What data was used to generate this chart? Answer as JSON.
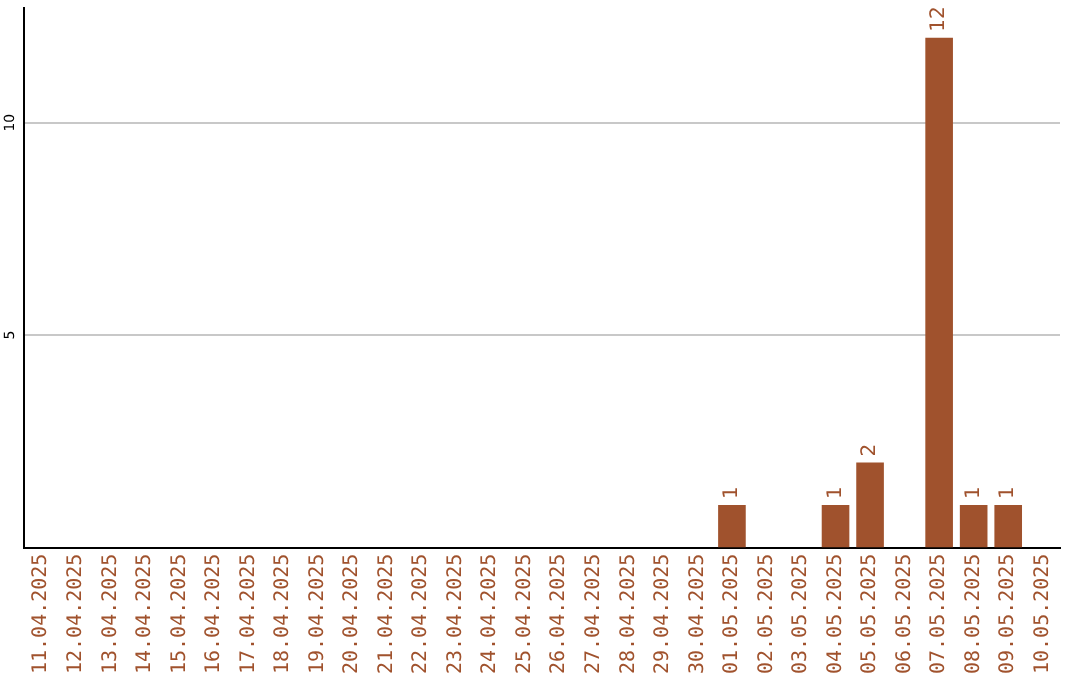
{
  "chart_data": {
    "type": "bar",
    "categories": [
      "11.04.2025",
      "12.04.2025",
      "13.04.2025",
      "14.04.2025",
      "15.04.2025",
      "16.04.2025",
      "17.04.2025",
      "18.04.2025",
      "19.04.2025",
      "20.04.2025",
      "21.04.2025",
      "22.04.2025",
      "23.04.2025",
      "24.04.2025",
      "25.04.2025",
      "26.04.2025",
      "27.04.2025",
      "28.04.2025",
      "29.04.2025",
      "30.04.2025",
      "01.05.2025",
      "02.05.2025",
      "03.05.2025",
      "04.05.2025",
      "05.05.2025",
      "06.05.2025",
      "07.05.2025",
      "08.05.2025",
      "09.05.2025",
      "10.05.2025"
    ],
    "values": [
      0,
      0,
      0,
      0,
      0,
      0,
      0,
      0,
      0,
      0,
      0,
      0,
      0,
      0,
      0,
      0,
      0,
      0,
      0,
      0,
      1,
      0,
      0,
      1,
      2,
      0,
      12,
      1,
      1,
      0
    ],
    "value_labels": [
      null,
      null,
      null,
      null,
      null,
      null,
      null,
      null,
      null,
      null,
      null,
      null,
      null,
      null,
      null,
      null,
      null,
      null,
      null,
      null,
      "1",
      null,
      null,
      "1",
      "2",
      null,
      "12",
      "1",
      "1",
      null
    ],
    "color": "#a0522d",
    "ylim": [
      0,
      12.7
    ],
    "yticks": [
      5,
      10
    ],
    "grid": "y",
    "legend": false
  }
}
